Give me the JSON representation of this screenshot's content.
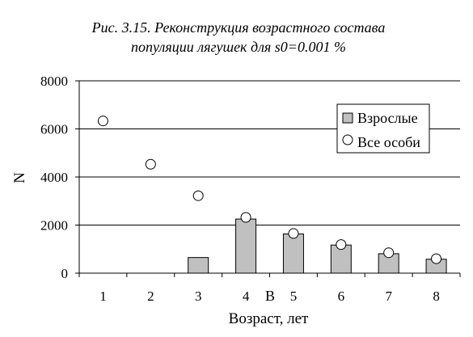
{
  "chart_data": {
    "type": "bar",
    "title_line1": "Рис. 3.15. Реконструкция возрастного состава",
    "title_line2": "популяции лягушек для s0=0.001 %",
    "xlabel": "Возраст, лет",
    "ylabel": "N",
    "x_annotation": "В",
    "categories": [
      "1",
      "2",
      "3",
      "4",
      "5",
      "6",
      "7",
      "8"
    ],
    "ylim": [
      0,
      8000
    ],
    "yticks": [
      "0",
      "2000",
      "4000",
      "6000",
      "8000"
    ],
    "grid": true,
    "legend_position": "top-right",
    "series": [
      {
        "name": "Взрослые",
        "kind": "bar",
        "color": "#c0c0c0",
        "values": [
          0,
          0,
          650,
          2250,
          1630,
          1170,
          810,
          580
        ]
      },
      {
        "name": "Все особи",
        "kind": "marker",
        "color": "#ffffff",
        "values": [
          6330,
          4530,
          3220,
          2320,
          1650,
          1190,
          850,
          600
        ]
      }
    ]
  }
}
